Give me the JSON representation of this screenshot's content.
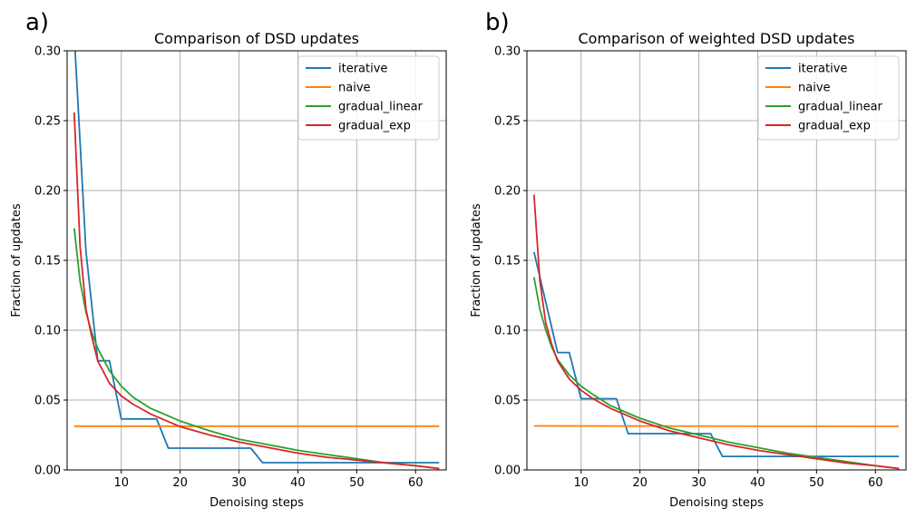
{
  "chart_data": [
    {
      "type": "line",
      "panel_label": "a)",
      "title": "Comparison of DSD updates",
      "xlabel": "Denoising steps",
      "ylabel": "Fraction of updates",
      "xlim": [
        0.8,
        65.2
      ],
      "ylim": [
        0,
        0.3
      ],
      "xticks": [
        10,
        20,
        30,
        40,
        50,
        60
      ],
      "yticks": [
        0.0,
        0.05,
        0.1,
        0.15,
        0.2,
        0.25,
        0.3
      ],
      "ytick_labels": [
        "0.00",
        "0.05",
        "0.10",
        "0.15",
        "0.20",
        "0.25",
        "0.30"
      ],
      "grid": true,
      "legend_position": "top-right",
      "series": [
        {
          "name": "iterative",
          "color": "#1f77b4",
          "x": [
            2,
            4,
            6,
            8,
            10,
            16,
            18,
            32,
            34,
            64
          ],
          "y": [
            0.3125,
            0.1563,
            0.0781,
            0.0781,
            0.0365,
            0.0365,
            0.0156,
            0.0156,
            0.0052,
            0.0052
          ]
        },
        {
          "name": "naive",
          "color": "#ff7f0e",
          "x": [
            2,
            64
          ],
          "y": [
            0.0313,
            0.0313
          ]
        },
        {
          "name": "gradual_linear",
          "color": "#2ca02c",
          "x": [
            2,
            3,
            4,
            5,
            6,
            8,
            10,
            12,
            15,
            20,
            25,
            30,
            35,
            40,
            45,
            50,
            55,
            60,
            64
          ],
          "y": [
            0.173,
            0.135,
            0.113,
            0.098,
            0.087,
            0.071,
            0.06,
            0.052,
            0.044,
            0.035,
            0.028,
            0.022,
            0.018,
            0.014,
            0.011,
            0.008,
            0.005,
            0.003,
            0.001
          ]
        },
        {
          "name": "gradual_exp",
          "color": "#d62728",
          "x": [
            2,
            3,
            4,
            5,
            6,
            8,
            10,
            12,
            15,
            20,
            25,
            30,
            35,
            40,
            45,
            50,
            55,
            60,
            64
          ],
          "y": [
            0.256,
            0.16,
            0.115,
            0.095,
            0.078,
            0.062,
            0.053,
            0.047,
            0.04,
            0.031,
            0.025,
            0.02,
            0.016,
            0.012,
            0.009,
            0.007,
            0.005,
            0.003,
            0.001
          ]
        }
      ]
    },
    {
      "type": "line",
      "panel_label": "b)",
      "title": "Comparison of weighted DSD updates",
      "xlabel": "Denoising steps",
      "ylabel": "Fraction of updates",
      "xlim": [
        0.8,
        65.2
      ],
      "ylim": [
        0,
        0.3
      ],
      "xticks": [
        10,
        20,
        30,
        40,
        50,
        60
      ],
      "yticks": [
        0.0,
        0.05,
        0.1,
        0.15,
        0.2,
        0.25,
        0.3
      ],
      "ytick_labels": [
        "0.00",
        "0.05",
        "0.10",
        "0.15",
        "0.20",
        "0.25",
        "0.30"
      ],
      "grid": true,
      "legend_position": "top-right",
      "series": [
        {
          "name": "iterative",
          "color": "#1f77b4",
          "x": [
            2,
            4,
            6,
            8,
            10,
            16,
            18,
            32,
            34,
            64
          ],
          "y": [
            0.156,
            0.12,
            0.084,
            0.084,
            0.051,
            0.051,
            0.026,
            0.026,
            0.0097,
            0.0097
          ]
        },
        {
          "name": "naive",
          "color": "#ff7f0e",
          "x": [
            2,
            64
          ],
          "y": [
            0.0315,
            0.0312
          ]
        },
        {
          "name": "gradual_linear",
          "color": "#2ca02c",
          "x": [
            2,
            3,
            4,
            5,
            6,
            8,
            10,
            12,
            15,
            20,
            25,
            30,
            35,
            40,
            45,
            50,
            55,
            60,
            64
          ],
          "y": [
            0.138,
            0.115,
            0.1,
            0.088,
            0.079,
            0.068,
            0.06,
            0.054,
            0.046,
            0.037,
            0.03,
            0.025,
            0.02,
            0.016,
            0.012,
            0.009,
            0.006,
            0.003,
            0.001
          ]
        },
        {
          "name": "gradual_exp",
          "color": "#d62728",
          "x": [
            2,
            3,
            4,
            5,
            6,
            8,
            10,
            12,
            15,
            20,
            25,
            30,
            35,
            40,
            45,
            50,
            55,
            60,
            64
          ],
          "y": [
            0.197,
            0.135,
            0.105,
            0.09,
            0.078,
            0.065,
            0.057,
            0.051,
            0.044,
            0.035,
            0.028,
            0.023,
            0.018,
            0.014,
            0.011,
            0.008,
            0.005,
            0.003,
            0.001
          ]
        }
      ]
    }
  ]
}
